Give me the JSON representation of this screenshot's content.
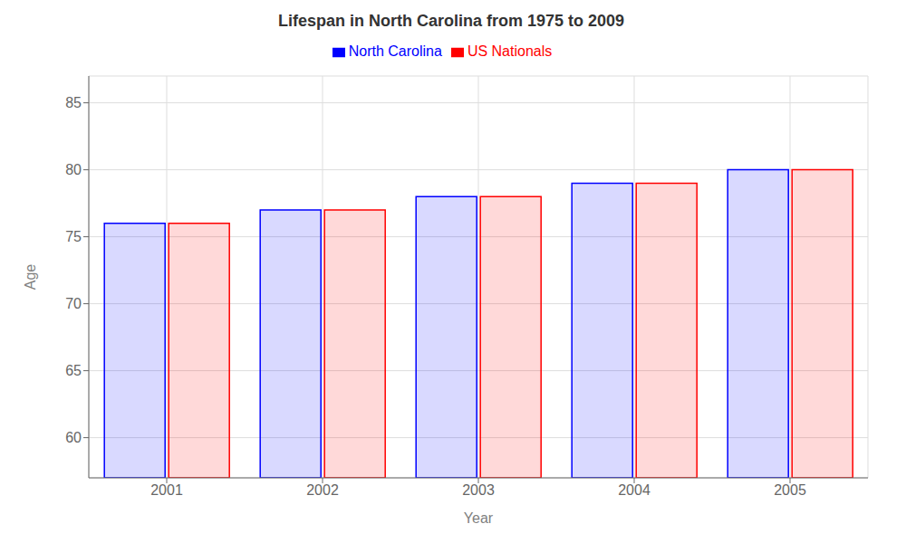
{
  "chart_data": {
    "type": "bar",
    "title": "Lifespan in North Carolina from 1975 to 2009",
    "xlabel": "Year",
    "ylabel": "Age",
    "categories": [
      "2001",
      "2002",
      "2003",
      "2004",
      "2005"
    ],
    "series": [
      {
        "name": "North Carolina",
        "color": "#0000ff",
        "values": [
          76,
          77,
          78,
          79,
          80
        ]
      },
      {
        "name": "US Nationals",
        "color": "#ff0000",
        "values": [
          76,
          77,
          78,
          79,
          80
        ]
      }
    ],
    "ylim": [
      57,
      87
    ],
    "yticks": [
      60,
      65,
      70,
      75,
      80,
      85
    ],
    "grid": true,
    "legend": "top"
  }
}
